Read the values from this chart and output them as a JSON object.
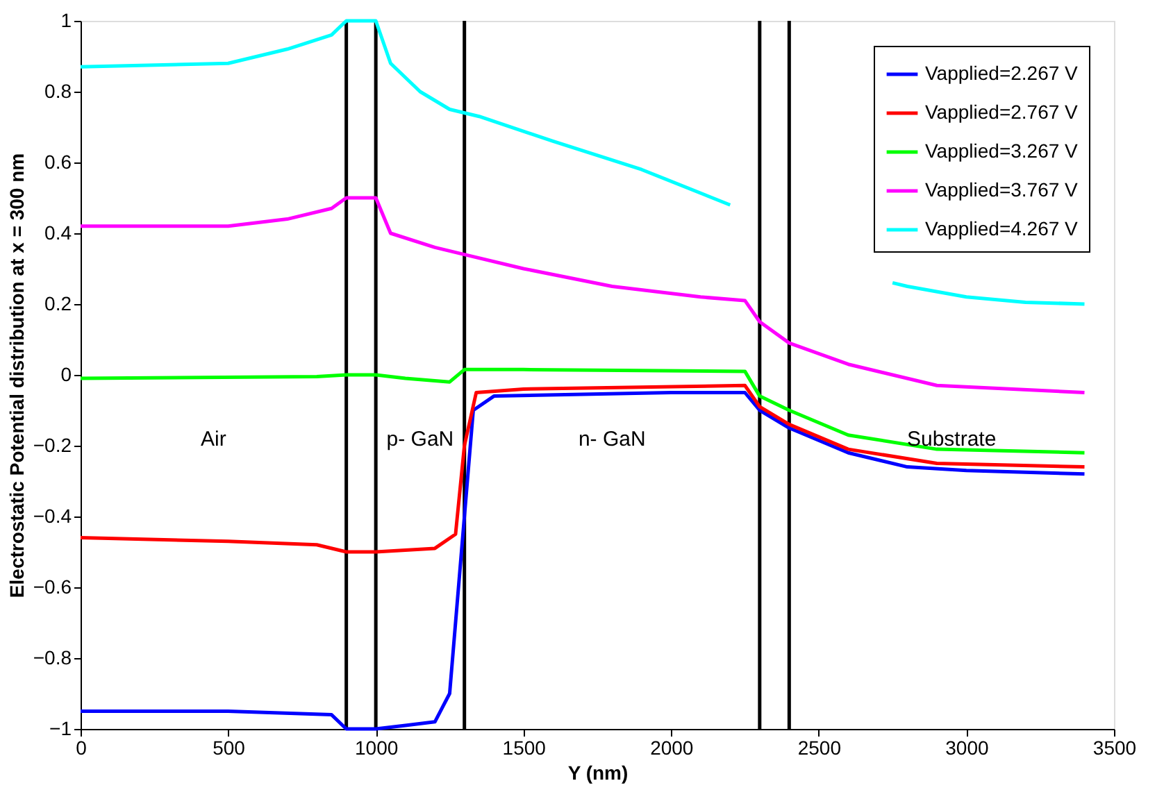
{
  "chart_data": {
    "type": "line",
    "xlabel": "Y (nm)",
    "ylabel": "Electrostatic Potential distribution at x = 300 nm",
    "xlim": [
      0,
      3500
    ],
    "xticks": [
      0,
      500,
      1000,
      1500,
      2000,
      2500,
      3000,
      3500
    ],
    "ylim": [
      -1,
      1
    ],
    "yticks": [
      -1,
      -0.8,
      -0.6,
      -0.4,
      -0.2,
      0,
      0.2,
      0.4,
      0.6,
      0.8,
      1
    ],
    "grid": false,
    "legend": "top right",
    "marker": "none",
    "line_style": "solid",
    "series": [
      {
        "name": "Vapplied=2.267 V",
        "color": "#0000ff",
        "x": [
          0,
          500,
          850,
          900,
          1000,
          1100,
          1200,
          1250,
          1290,
          1330,
          1400,
          2000,
          2250,
          2300,
          2400,
          2600,
          2800,
          3000,
          3400
        ],
        "values": [
          -0.95,
          -0.95,
          -0.96,
          -1,
          -1,
          -0.99,
          -0.98,
          -0.9,
          -0.5,
          -0.1,
          -0.06,
          -0.05,
          -0.05,
          -0.1,
          -0.15,
          -0.22,
          -0.26,
          -0.27,
          -0.28
        ]
      },
      {
        "name": "Vapplied=2.767 V",
        "color": "#ff0000",
        "x": [
          0,
          500,
          800,
          900,
          1000,
          1200,
          1270,
          1300,
          1340,
          1500,
          2250,
          2300,
          2400,
          2600,
          2900,
          3400
        ],
        "values": [
          -0.46,
          -0.47,
          -0.48,
          -0.5,
          -0.5,
          -0.49,
          -0.45,
          -0.2,
          -0.05,
          -0.04,
          -0.03,
          -0.09,
          -0.14,
          -0.21,
          -0.25,
          -0.26
        ]
      },
      {
        "name": "Vapplied=3.267 V",
        "color": "#00ff00",
        "x": [
          0,
          800,
          900,
          1000,
          1100,
          1250,
          1300,
          1500,
          2250,
          2300,
          2400,
          2600,
          2900,
          3400
        ],
        "values": [
          -0.01,
          -0.005,
          0,
          0,
          -0.01,
          -0.02,
          0.015,
          0.015,
          0.01,
          -0.06,
          -0.1,
          -0.17,
          -0.21,
          -0.22
        ]
      },
      {
        "name": "Vapplied=3.767 V",
        "color": "#ff00ff",
        "x": [
          0,
          500,
          700,
          850,
          900,
          1000,
          1050,
          1200,
          1300,
          1500,
          1800,
          2100,
          2250,
          2300,
          2400,
          2600,
          2900,
          3400
        ],
        "values": [
          0.42,
          0.42,
          0.44,
          0.47,
          0.5,
          0.5,
          0.4,
          0.36,
          0.34,
          0.3,
          0.25,
          0.22,
          0.21,
          0.15,
          0.09,
          0.03,
          -0.03,
          -0.05
        ]
      },
      {
        "name": "Vapplied=4.267 V",
        "color": "#00ffff",
        "x": [
          0,
          500,
          700,
          850,
          900,
          1000,
          1050,
          1150,
          1250,
          1350,
          1600,
          1900,
          2200,
          2300,
          2500,
          2750,
          2800,
          3000,
          3200,
          3400
        ],
        "values": [
          0.87,
          0.88,
          0.92,
          0.96,
          1,
          1,
          0.88,
          0.8,
          0.75,
          0.73,
          0.66,
          0.58,
          0.48,
          null,
          null,
          0.26,
          0.25,
          0.22,
          0.205,
          0.2
        ]
      }
    ],
    "ref_lines": [
      {
        "axis": "x",
        "value": 900,
        "color": "#000000"
      },
      {
        "axis": "x",
        "value": 1000,
        "color": "#000000"
      },
      {
        "axis": "x",
        "value": 1300,
        "color": "#000000"
      },
      {
        "axis": "x",
        "value": 2300,
        "color": "#000000"
      },
      {
        "axis": "x",
        "value": 2400,
        "color": "#000000"
      }
    ],
    "annotations": [
      "Air",
      "p- GaN",
      "n- GaN",
      "Substrate"
    ]
  }
}
